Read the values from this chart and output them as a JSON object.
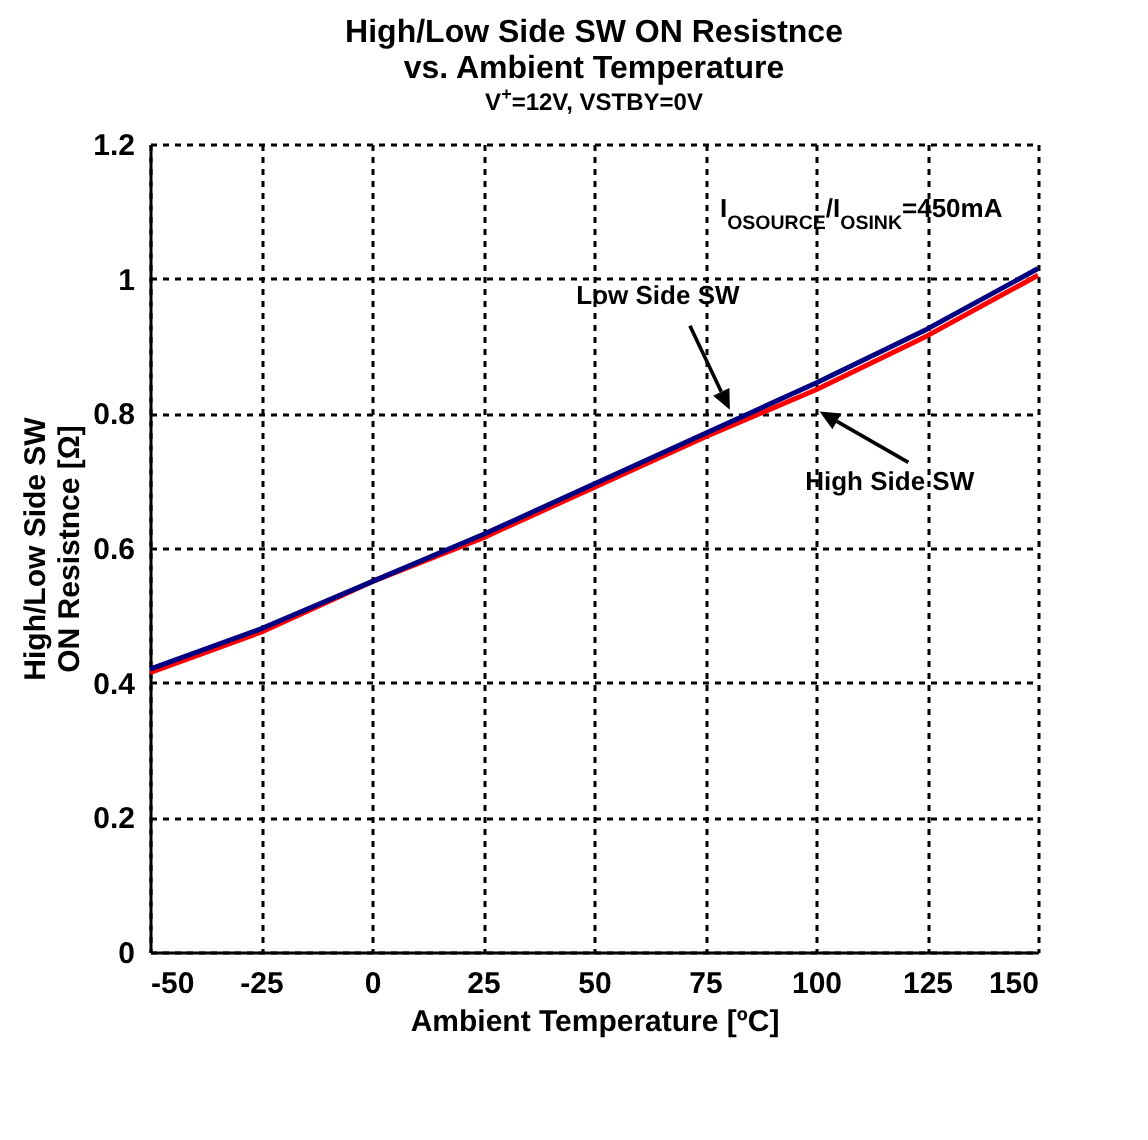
{
  "chart_data": {
    "type": "line",
    "title": "High/Low Side SW ON Resistnce\nvs. Ambient Temperature",
    "subtitle": "V$^{+}$=12V, VSTBY=0V",
    "xlabel": "Ambient Temperature [ºC]",
    "ylabel": "High/Low Side SW\nON Resistnce [Ω]",
    "x": [
      -50,
      -25,
      0,
      25,
      50,
      75,
      100,
      125,
      150
    ],
    "series": [
      {
        "color": "#ff0000",
        "values": [
          0.415,
          0.475,
          0.55,
          0.615,
          0.69,
          0.765,
          0.835,
          0.915,
          1.005
        ]
      },
      {
        "color": "#000080",
        "values": [
          0.42,
          0.48,
          0.55,
          0.62,
          0.695,
          0.77,
          0.845,
          0.925,
          1.015
        ]
      }
    ],
    "xlim": [
      -50,
      150
    ],
    "xticks": [
      -50,
      -25,
      0,
      25,
      50,
      75,
      100,
      125,
      150
    ],
    "ylim": [
      0,
      1.2
    ],
    "yticks": [
      {
        "value": 0,
        "label": "0"
      },
      0.2,
      0.4,
      0.6,
      0.8,
      {
        "value": 1,
        "label": "1"
      },
      1.2
    ],
    "grid": true,
    "legend": false,
    "marker": "none",
    "line_style": "solid",
    "annotations": [
      "I$_{OSOURCE}$/I$_{OSINK}$=450mA",
      "Low Side SW",
      "High Side SW"
    ]
  }
}
